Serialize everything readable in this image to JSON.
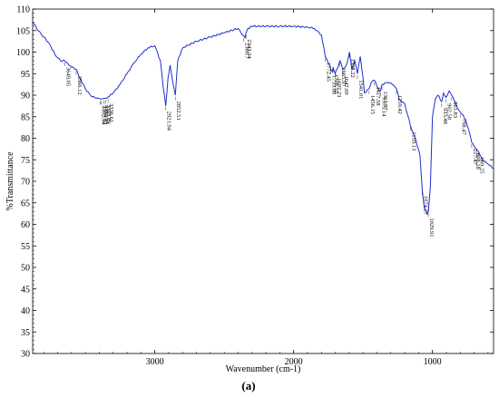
{
  "chart_data": {
    "type": "line",
    "title": "",
    "xlabel": "Wavenumber (cm-1)",
    "ylabel": "%Transmittance",
    "panel_label": "(a)",
    "xlim": [
      3880,
      560
    ],
    "ylim": [
      30,
      110
    ],
    "x_reversed": true,
    "grid": false,
    "legend": "none",
    "line_color": "#1f2fd0",
    "x_ticks": [
      3000,
      2000,
      1000
    ],
    "y_ticks": [
      30,
      35,
      40,
      45,
      50,
      55,
      60,
      65,
      70,
      75,
      80,
      85,
      90,
      95,
      100,
      105,
      110
    ],
    "series": [
      {
        "x": [
          3880,
          3840,
          3800,
          3760,
          3720,
          3680,
          3649,
          3620,
          3600,
          3566,
          3540,
          3500,
          3460,
          3420,
          3392,
          3384,
          3366,
          3356,
          3336,
          3300,
          3250,
          3200,
          3150,
          3100,
          3050,
          3000,
          2960,
          2940,
          2921,
          2905,
          2890,
          2870,
          2852,
          2835,
          2800,
          2700,
          2600,
          2500,
          2400,
          2370,
          2350,
          2343,
          2330,
          2300,
          2200,
          2100,
          2000,
          1900,
          1850,
          1800,
          1772,
          1750,
          1733,
          1720,
          1716,
          1700,
          1697,
          1680,
          1665,
          1647,
          1620,
          1598,
          1580,
          1560,
          1541,
          1520,
          1500,
          1490,
          1456,
          1440,
          1418,
          1400,
          1375,
          1363,
          1320,
          1290,
          1259,
          1240,
          1200,
          1159,
          1120,
          1090,
          1074,
          1060,
          1040,
          1029,
          1015,
          1000,
          980,
          960,
          933,
          920,
          902,
          880,
          862,
          840,
          820,
          798,
          780,
          760,
          740,
          717,
          698,
          669,
          640,
          600,
          560
        ],
        "y": [
          107,
          105,
          103.5,
          102,
          99.5,
          98,
          98,
          97,
          96.5,
          96,
          94,
          91.5,
          89.8,
          89.3,
          89.1,
          89.1,
          89.2,
          89.3,
          89.6,
          90.5,
          92.5,
          95,
          97.5,
          99.5,
          101,
          101.5,
          98,
          92,
          87.5,
          94,
          97,
          93,
          90,
          98,
          101,
          102.5,
          103.5,
          104.5,
          105.5,
          104,
          103.3,
          104.5,
          105.5,
          106,
          106,
          106,
          106,
          105.8,
          105.5,
          104,
          99,
          97.5,
          96,
          95.5,
          96.5,
          95,
          95.5,
          96.5,
          98,
          96,
          97,
          100,
          96,
          98,
          95,
          99,
          94,
          90.5,
          91.5,
          93,
          93.5,
          92,
          91,
          92.5,
          93,
          92.5,
          91.5,
          89,
          88,
          83,
          79.5,
          76,
          68,
          64,
          62.5,
          63,
          69,
          85,
          89,
          90,
          88.5,
          90.5,
          89.5,
          91,
          90,
          88.5,
          87,
          86,
          85.5,
          84,
          82,
          79,
          78,
          77,
          75,
          74,
          73
        ]
      }
    ],
    "annotations": [
      "3649.05",
      "3566.12",
      "3392.34",
      "3384.82",
      "3365.54",
      "3355.89",
      "3336.61",
      "2921.94",
      "2852.51",
      "2360.7",
      "2343.34",
      "1772.45",
      "1733.88",
      "1716.52",
      "1697.23",
      "1665.97",
      "1647.09",
      "1598.22",
      "1541.01",
      "1456.15",
      "1417.58",
      "1375.14",
      "1363.57",
      "1259.42",
      "1159.13",
      "1074.27",
      "1029.91",
      "933.48",
      "902.58",
      "861.83",
      "798.47",
      "717.47",
      "698.18",
      "669.25"
    ]
  }
}
